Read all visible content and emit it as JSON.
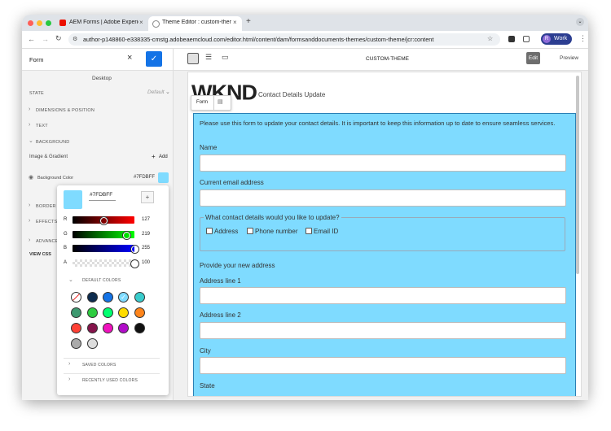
{
  "browser": {
    "tabs": [
      "AEM Forms | Adobe Experien",
      "Theme Editor : custom-theme"
    ],
    "url": "author-p148860-e338335-cmstg.adobeaemcloud.com/editor.html/content/dam/formsanddocuments-themes/custom-theme/jcr:content",
    "profile_initial": "R",
    "profile": "Work"
  },
  "sidebar": {
    "title": "Form",
    "device": "Desktop",
    "state_label": "STATE",
    "state_value": "Default",
    "sections": [
      "DIMENSIONS & POSITION",
      "TEXT",
      "BACKGROUND"
    ],
    "image_gradient": "Image & Gradient",
    "add": "Add",
    "background_color_label": "Background Color",
    "background_color_value": "#7FDBFF",
    "lower_sections": [
      "BORDER",
      "EFFECTS",
      "ADVANCED"
    ],
    "view_css": "VIEW CSS"
  },
  "color_picker": {
    "hex": "#7FDBFF",
    "channels": [
      {
        "label": "R",
        "value": 127
      },
      {
        "label": "G",
        "value": 219
      },
      {
        "label": "B",
        "value": 255
      },
      {
        "label": "A",
        "value": 100
      }
    ],
    "default_colors": "DEFAULT COLORS",
    "saved_colors": "SAVED COLORS",
    "recent_colors": "RECENTLY USED COLORS"
  },
  "toolbar": {
    "title": "CUSTOM-THEME",
    "edit": "Edit",
    "preview": "Preview"
  },
  "canvas": {
    "logo": "WKND",
    "heading": "Contact Details Update",
    "tooltip": "Form",
    "intro": "Please use this form to update your contact details. It is important to keep this information up to date to ensure seamless services.",
    "fields": [
      "Name",
      "Current email address"
    ],
    "fieldset_legend": "What contact details would you like to update?",
    "options": [
      "Address",
      "Phone number",
      "Email ID"
    ],
    "new_address": "Provide your new address",
    "address_fields": [
      "Address line 1",
      "Address line 2",
      "City",
      "State"
    ]
  }
}
